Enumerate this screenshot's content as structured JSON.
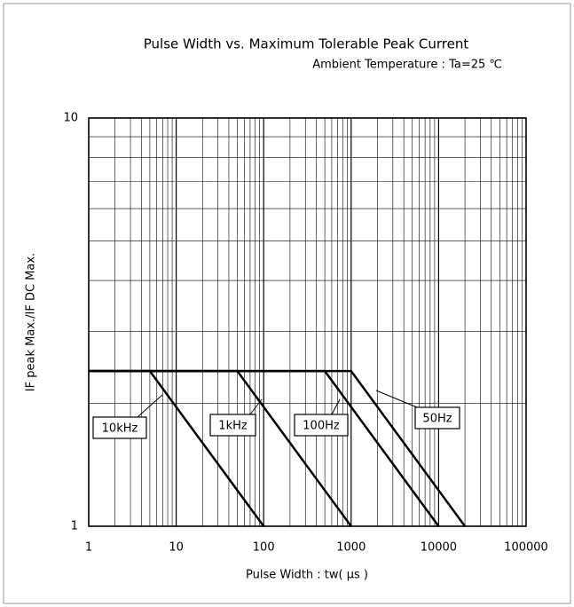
{
  "chart_data": {
    "type": "line",
    "title": "Pulse Width vs. Maximum Tolerable Peak Current",
    "subtitle": "Ambient Temperature : Ta=25 ℃",
    "x_label": "Pulse Width : tw( μs )",
    "y_label": "IF peak Max./IF DC Max.",
    "x_log": true,
    "y_log": true,
    "grid": true,
    "minor_grid": true,
    "xlim": [
      1,
      100000
    ],
    "ylim": [
      1,
      10
    ],
    "xticks": [
      1,
      10,
      100,
      1000,
      10000,
      100000
    ],
    "yticks": [
      1,
      10
    ],
    "series": [
      {
        "name": "10kHz",
        "color": "#000000",
        "x": [
          1,
          5,
          100
        ],
        "values": [
          2.4,
          2.4,
          1
        ]
      },
      {
        "name": "1kHz",
        "color": "#000000",
        "x": [
          1,
          50,
          1000
        ],
        "values": [
          2.4,
          2.4,
          1
        ]
      },
      {
        "name": "100Hz",
        "color": "#000000",
        "x": [
          1,
          500,
          10000
        ],
        "values": [
          2.4,
          2.4,
          1
        ]
      },
      {
        "name": "50Hz",
        "color": "#000000",
        "x": [
          1,
          1000,
          20000
        ],
        "values": [
          2.4,
          2.4,
          1
        ]
      }
    ]
  }
}
